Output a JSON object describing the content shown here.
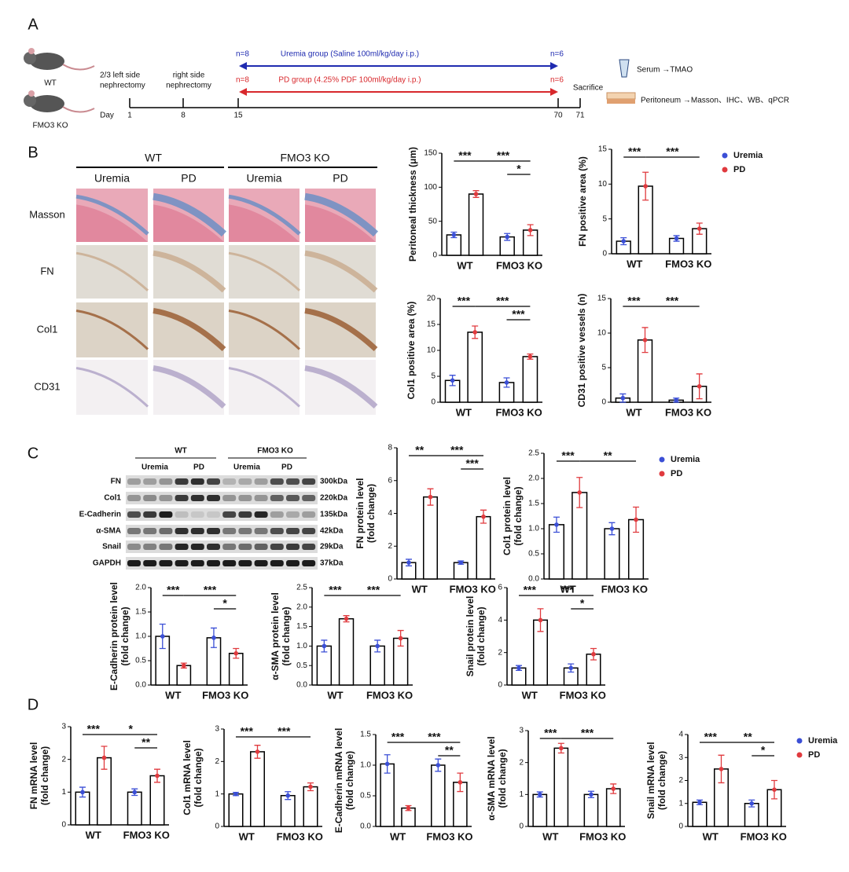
{
  "panel_labels": [
    "A",
    "B",
    "C",
    "D"
  ],
  "panel_a": {
    "mice": [
      "WT",
      "FMO3 KO"
    ],
    "events": [
      [
        "2/3  left  side",
        "nephrectomy"
      ],
      [
        "right side",
        "nephrectomy"
      ]
    ],
    "day_label": "Day",
    "days": [
      1,
      8,
      15,
      70,
      71
    ],
    "sacrifice": "Sacrifice",
    "groups": [
      {
        "n_start": "n=8",
        "label": "Uremia group (Saline 100ml/kg/day  i.p.)",
        "n_end": "n=6"
      },
      {
        "n_start": "n=8",
        "label": "PD group (4.25% PDF  100ml/kg/day i.p.)",
        "n_end": "n=6"
      }
    ],
    "outputs": [
      "Serum →TMAO",
      "Peritoneum →Masson、IHC、WB、qPCR"
    ]
  },
  "panel_b": {
    "genotypes": [
      "WT",
      "FMO3 KO"
    ],
    "groups": [
      "Uremia",
      "PD",
      "Uremia",
      "PD"
    ],
    "stains": [
      "Masson",
      "FN",
      "Col1",
      "CD31"
    ]
  },
  "panel_c": {
    "genotypes": [
      "WT",
      "FMO3 KO"
    ],
    "groups": [
      "Uremia",
      "PD",
      "Uremia",
      "PD"
    ],
    "proteins": [
      "FN",
      "Col1",
      "E-Cadherin",
      "α-SMA",
      "Snail",
      "GAPDH"
    ],
    "sizes": [
      "300kDa",
      "220kDa",
      "135kDa",
      "42kDa",
      "29kDa",
      "37kDa"
    ]
  },
  "chart_data": [
    {
      "type": "bar",
      "ylabel": [
        "Peritoneal thickness (μm)"
      ],
      "categories": [
        "WT",
        "FMO3 KO"
      ],
      "series": [
        {
          "name": "Uremia",
          "color": "#3b4fd6",
          "values": [
            30,
            27
          ],
          "errors": [
            4,
            5
          ]
        },
        {
          "name": "PD",
          "color": "#e03a3e",
          "values": [
            90,
            37
          ],
          "errors": [
            5,
            8
          ]
        }
      ],
      "ylim": [
        0,
        150
      ],
      "yticks": [
        0,
        50,
        100,
        150
      ],
      "annotations": [
        {
          "text": "***",
          "bars": [
            0,
            1
          ]
        },
        {
          "text": "***",
          "bars": [
            1,
            3
          ]
        },
        {
          "text": "*",
          "bars": [
            2,
            3
          ]
        }
      ]
    },
    {
      "type": "bar",
      "ylabel": [
        "FN positive area (%)"
      ],
      "categories": [
        "WT",
        "FMO3 KO"
      ],
      "legend": true,
      "series": [
        {
          "name": "Uremia",
          "color": "#3b4fd6",
          "values": [
            1.8,
            2.2
          ],
          "errors": [
            0.5,
            0.4
          ]
        },
        {
          "name": "PD",
          "color": "#e03a3e",
          "values": [
            9.7,
            3.6
          ],
          "errors": [
            2,
            0.8
          ]
        }
      ],
      "ylim": [
        0,
        15
      ],
      "yticks": [
        0,
        5,
        10,
        15
      ],
      "annotations": [
        {
          "text": "***",
          "bars": [
            0,
            1
          ]
        },
        {
          "text": "***",
          "bars": [
            1,
            3
          ]
        }
      ]
    },
    {
      "type": "bar",
      "ylabel": [
        "Col1 positive area (%)"
      ],
      "categories": [
        "WT",
        "FMO3 KO"
      ],
      "series": [
        {
          "name": "Uremia",
          "color": "#3b4fd6",
          "values": [
            4.2,
            3.8
          ],
          "errors": [
            1,
            0.9
          ]
        },
        {
          "name": "PD",
          "color": "#e03a3e",
          "values": [
            13.5,
            8.8
          ],
          "errors": [
            1.2,
            0.5
          ]
        }
      ],
      "ylim": [
        0,
        20
      ],
      "yticks": [
        0,
        5,
        10,
        15,
        20
      ],
      "annotations": [
        {
          "text": "***",
          "bars": [
            0,
            1
          ]
        },
        {
          "text": "***",
          "bars": [
            1,
            3
          ]
        },
        {
          "text": "***",
          "bars": [
            2,
            3
          ]
        }
      ]
    },
    {
      "type": "bar",
      "ylabel": [
        "CD31 positive vessels (n)"
      ],
      "categories": [
        "WT",
        "FMO3 KO"
      ],
      "series": [
        {
          "name": "Uremia",
          "color": "#3b4fd6",
          "values": [
            0.6,
            0.3
          ],
          "errors": [
            0.6,
            0.3
          ]
        },
        {
          "name": "PD",
          "color": "#e03a3e",
          "values": [
            9,
            2.3
          ],
          "errors": [
            1.8,
            1.8
          ]
        }
      ],
      "ylim": [
        0,
        15
      ],
      "yticks": [
        0,
        5,
        10,
        15
      ],
      "annotations": [
        {
          "text": "***",
          "bars": [
            0,
            1
          ]
        },
        {
          "text": "***",
          "bars": [
            1,
            3
          ]
        }
      ]
    },
    {
      "type": "bar",
      "ylabel": [
        "FN protein level",
        "(fold change)"
      ],
      "categories": [
        "WT",
        "FMO3 KO"
      ],
      "series": [
        {
          "name": "Uremia",
          "color": "#3b4fd6",
          "values": [
            1.0,
            1.0
          ],
          "errors": [
            0.2,
            0.1
          ]
        },
        {
          "name": "PD",
          "color": "#e03a3e",
          "values": [
            5.0,
            3.8
          ],
          "errors": [
            0.5,
            0.4
          ]
        }
      ],
      "ylim": [
        0,
        8
      ],
      "yticks": [
        0,
        2,
        4,
        6,
        8
      ],
      "annotations": [
        {
          "text": "**",
          "bars": [
            0,
            1
          ]
        },
        {
          "text": "***",
          "bars": [
            1,
            3
          ]
        },
        {
          "text": "***",
          "bars": [
            2,
            3
          ]
        }
      ]
    },
    {
      "type": "bar",
      "ylabel": [
        "Col1 protein level",
        "(fold change)"
      ],
      "categories": [
        "WT",
        "FMO3 KO"
      ],
      "legend": true,
      "series": [
        {
          "name": "Uremia",
          "color": "#3b4fd6",
          "values": [
            1.08,
            1.0
          ],
          "errors": [
            0.15,
            0.12
          ]
        },
        {
          "name": "PD",
          "color": "#e03a3e",
          "values": [
            1.72,
            1.18
          ],
          "errors": [
            0.3,
            0.25
          ]
        }
      ],
      "ylim": [
        0,
        2.5
      ],
      "yticks": [
        {
          "value": 0,
          "label": "0.0"
        },
        0.5,
        {
          "value": 1,
          "label": "1.0"
        },
        1.5,
        {
          "value": 2,
          "label": "2.0"
        },
        2.5
      ],
      "annotations": [
        {
          "text": "***",
          "bars": [
            0,
            1
          ]
        },
        {
          "text": "**",
          "bars": [
            1,
            3
          ]
        }
      ]
    },
    {
      "type": "bar",
      "ylabel": [
        "E-Cadherin protein level",
        "(fold change)"
      ],
      "categories": [
        "WT",
        "FMO3 KO"
      ],
      "series": [
        {
          "name": "Uremia",
          "color": "#3b4fd6",
          "values": [
            1.0,
            0.97
          ],
          "errors": [
            0.25,
            0.2
          ]
        },
        {
          "name": "PD",
          "color": "#e03a3e",
          "values": [
            0.4,
            0.65
          ],
          "errors": [
            0.05,
            0.1
          ]
        }
      ],
      "ylim": [
        0,
        2
      ],
      "yticks": [
        {
          "value": 0,
          "label": "0.0"
        },
        0.5,
        {
          "value": 1,
          "label": "1.0"
        },
        1.5,
        {
          "value": 2,
          "label": "2.0"
        }
      ],
      "annotations": [
        {
          "text": "***",
          "bars": [
            0,
            1
          ]
        },
        {
          "text": "***",
          "bars": [
            1,
            3
          ]
        },
        {
          "text": "*",
          "bars": [
            2,
            3
          ]
        }
      ]
    },
    {
      "type": "bar",
      "ylabel": [
        "α-SMA protein level",
        "(fold change)"
      ],
      "categories": [
        "WT",
        "FMO3 KO"
      ],
      "series": [
        {
          "name": "Uremia",
          "color": "#3b4fd6",
          "values": [
            1.0,
            1.0
          ],
          "errors": [
            0.15,
            0.15
          ]
        },
        {
          "name": "PD",
          "color": "#e03a3e",
          "values": [
            1.7,
            1.2
          ],
          "errors": [
            0.08,
            0.2
          ]
        }
      ],
      "ylim": [
        0,
        2.5
      ],
      "yticks": [
        {
          "value": 0,
          "label": "0.0"
        },
        0.5,
        {
          "value": 1,
          "label": "1.0"
        },
        1.5,
        {
          "value": 2,
          "label": "2.0"
        },
        2.5
      ],
      "annotations": [
        {
          "text": "***",
          "bars": [
            0,
            1
          ]
        },
        {
          "text": "***",
          "bars": [
            1,
            3
          ]
        }
      ]
    },
    {
      "type": "bar",
      "ylabel": [
        "Snail protein level",
        "(fold change)"
      ],
      "categories": [
        "WT",
        "FMO3 KO"
      ],
      "series": [
        {
          "name": "Uremia",
          "color": "#3b4fd6",
          "values": [
            1.05,
            1.05
          ],
          "errors": [
            0.15,
            0.25
          ]
        },
        {
          "name": "PD",
          "color": "#e03a3e",
          "values": [
            4.0,
            1.9
          ],
          "errors": [
            0.7,
            0.35
          ]
        }
      ],
      "ylim": [
        0,
        6
      ],
      "yticks": [
        0,
        2,
        4,
        6
      ],
      "annotations": [
        {
          "text": "***",
          "bars": [
            0,
            1
          ]
        },
        {
          "text": "***",
          "bars": [
            1,
            3
          ]
        },
        {
          "text": "*",
          "bars": [
            2,
            3
          ]
        }
      ]
    },
    {
      "type": "bar",
      "ylabel": [
        "FN mRNA level",
        "(fold change)"
      ],
      "categories": [
        "WT",
        "FMO3 KO"
      ],
      "series": [
        {
          "name": "Uremia",
          "color": "#3b4fd6",
          "values": [
            1.0,
            1.0
          ],
          "errors": [
            0.15,
            0.1
          ]
        },
        {
          "name": "PD",
          "color": "#e03a3e",
          "values": [
            2.05,
            1.5
          ],
          "errors": [
            0.35,
            0.2
          ]
        }
      ],
      "ylim": [
        0,
        3
      ],
      "yticks": [
        0,
        1,
        2,
        3
      ],
      "annotations": [
        {
          "text": "***",
          "bars": [
            0,
            1
          ]
        },
        {
          "text": "*",
          "bars": [
            1,
            3
          ]
        },
        {
          "text": "**",
          "bars": [
            2,
            3
          ]
        }
      ]
    },
    {
      "type": "bar",
      "ylabel": [
        "Col1 mRNA level",
        "(fold change)"
      ],
      "categories": [
        "WT",
        "FMO3 KO"
      ],
      "series": [
        {
          "name": "Uremia",
          "color": "#3b4fd6",
          "values": [
            1.0,
            0.95
          ],
          "errors": [
            0.05,
            0.12
          ]
        },
        {
          "name": "PD",
          "color": "#e03a3e",
          "values": [
            2.3,
            1.22
          ],
          "errors": [
            0.2,
            0.12
          ]
        }
      ],
      "ylim": [
        0,
        3
      ],
      "yticks": [
        0,
        1,
        2,
        3
      ],
      "annotations": [
        {
          "text": "***",
          "bars": [
            0,
            1
          ]
        },
        {
          "text": "***",
          "bars": [
            1,
            3
          ]
        }
      ]
    },
    {
      "type": "bar",
      "ylabel": [
        "E-Cadherin mRNA level",
        "(fold change)"
      ],
      "categories": [
        "WT",
        "FMO3 KO"
      ],
      "series": [
        {
          "name": "Uremia",
          "color": "#3b4fd6",
          "values": [
            1.02,
            1.0
          ],
          "errors": [
            0.15,
            0.1
          ]
        },
        {
          "name": "PD",
          "color": "#e03a3e",
          "values": [
            0.3,
            0.72
          ],
          "errors": [
            0.04,
            0.15
          ]
        }
      ],
      "ylim": [
        0,
        1.5
      ],
      "yticks": [
        {
          "value": 0,
          "label": "0.0"
        },
        0.5,
        {
          "value": 1,
          "label": "1.0"
        },
        1.5
      ],
      "annotations": [
        {
          "text": "***",
          "bars": [
            0,
            1
          ]
        },
        {
          "text": "***",
          "bars": [
            1,
            3
          ]
        },
        {
          "text": "**",
          "bars": [
            2,
            3
          ]
        }
      ]
    },
    {
      "type": "bar",
      "ylabel": [
        "α-SMA mRNA level",
        "(fold change)"
      ],
      "categories": [
        "WT",
        "FMO3 KO"
      ],
      "series": [
        {
          "name": "Uremia",
          "color": "#3b4fd6",
          "values": [
            1.0,
            1.0
          ],
          "errors": [
            0.08,
            0.1
          ]
        },
        {
          "name": "PD",
          "color": "#e03a3e",
          "values": [
            2.45,
            1.18
          ],
          "errors": [
            0.15,
            0.15
          ]
        }
      ],
      "ylim": [
        0,
        3
      ],
      "yticks": [
        0,
        1,
        2,
        3
      ],
      "annotations": [
        {
          "text": "***",
          "bars": [
            0,
            1
          ]
        },
        {
          "text": "***",
          "bars": [
            1,
            3
          ]
        }
      ]
    },
    {
      "type": "bar",
      "ylabel": [
        "Snail mRNA level",
        "(fold change)"
      ],
      "categories": [
        "WT",
        "FMO3 KO"
      ],
      "legend": true,
      "series": [
        {
          "name": "Uremia",
          "color": "#3b4fd6",
          "values": [
            1.05,
            1.0
          ],
          "errors": [
            0.1,
            0.15
          ]
        },
        {
          "name": "PD",
          "color": "#e03a3e",
          "values": [
            2.5,
            1.6
          ],
          "errors": [
            0.6,
            0.4
          ]
        }
      ],
      "ylim": [
        0,
        4
      ],
      "yticks": [
        0,
        1,
        2,
        3,
        4
      ],
      "annotations": [
        {
          "text": "***",
          "bars": [
            0,
            1
          ]
        },
        {
          "text": "**",
          "bars": [
            1,
            3
          ]
        },
        {
          "text": "*",
          "bars": [
            2,
            3
          ]
        }
      ]
    }
  ]
}
